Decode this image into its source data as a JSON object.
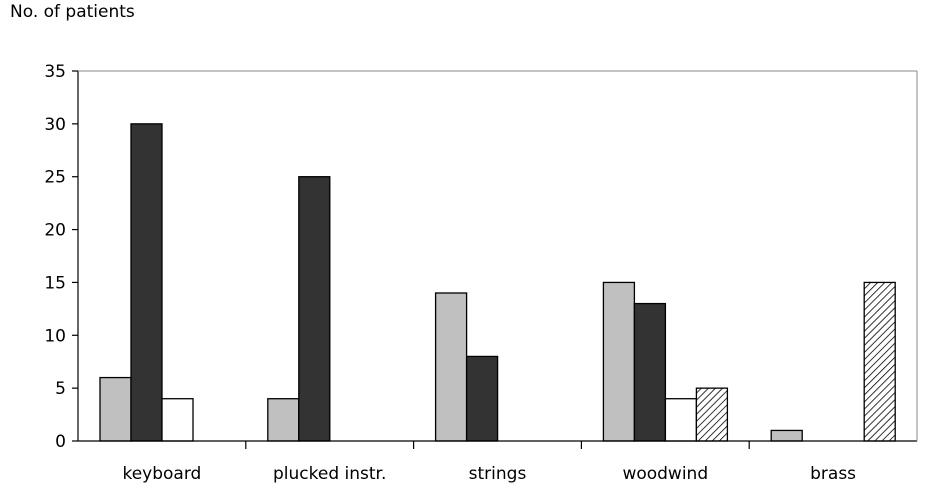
{
  "chart_data": {
    "type": "bar",
    "title": "",
    "xlabel": "",
    "ylabel": "No. of patients",
    "ylim": [
      0,
      35
    ],
    "yticks": [
      "0",
      "5",
      "10",
      "15",
      "20",
      "25",
      "30",
      "35"
    ],
    "categories": [
      "keyboard",
      "plucked instr.",
      "strings",
      "woodwind",
      "brass"
    ],
    "series": [
      {
        "color": "#c0c0c0",
        "pattern": "solid",
        "values": [
          6,
          4,
          14,
          15,
          1
        ]
      },
      {
        "color": "#333333",
        "pattern": "solid",
        "values": [
          30,
          25,
          8,
          13,
          0
        ]
      },
      {
        "color": "#ffffff",
        "pattern": "solid",
        "values": [
          4,
          0,
          0,
          4,
          0
        ]
      },
      {
        "color": "#ffffff",
        "pattern": "diagonal-hatch",
        "values": [
          0,
          0,
          0,
          5,
          15
        ]
      }
    ],
    "grid": false,
    "legend": "none"
  }
}
